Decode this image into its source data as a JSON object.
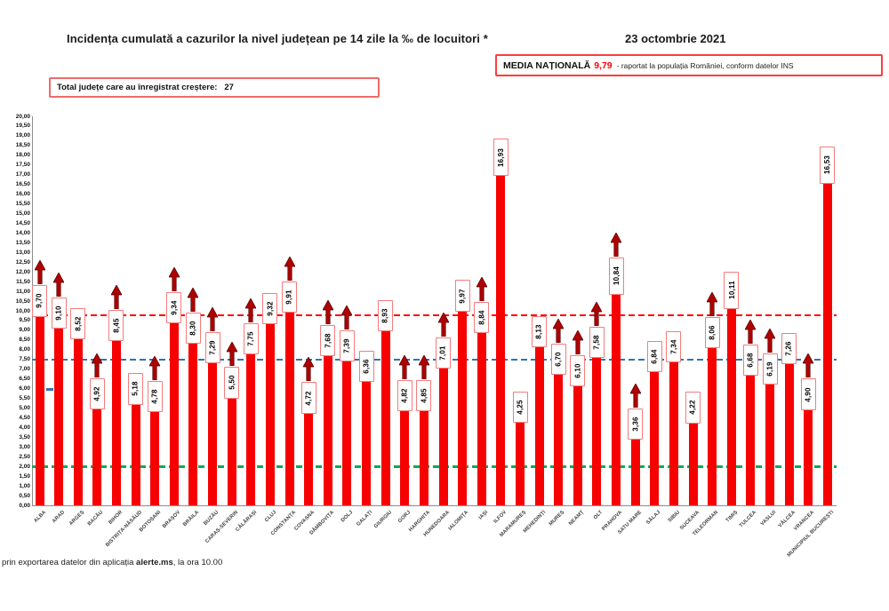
{
  "title": "Incidența cumulată a cazurilor la nivel județean pe 14 zile la ‰ de locuitori *",
  "date": "23 octombrie 2021",
  "national_average_box": {
    "label": "MEDIA NAȚIONALĂ",
    "value": "9,79",
    "suffix": "-  raportat la populația României, conform datelor INS"
  },
  "growth_box": {
    "label": "Total județe care au înregistrat creștere:",
    "value": "27"
  },
  "footer": {
    "prefix": "prin exportarea datelor din aplicația ",
    "bold": "alerte.ms",
    "suffix": ", la ora 10.00"
  },
  "chart_data": {
    "type": "bar",
    "title": "Incidența cumulată a cazurilor la nivel județean pe 14 zile la ‰ de locuitori *",
    "xlabel": "",
    "ylabel": "",
    "ylim": [
      0,
      20
    ],
    "ytick_step": 0.5,
    "grid": false,
    "bar_color": "#f70000",
    "label_box_border_color": "#f47c7c",
    "arrow_color": "#b00000",
    "categories": [
      "ALBA",
      "ARAD",
      "ARGEȘ",
      "BACĂU",
      "BIHOR",
      "BISTRIȚA-NĂSĂUD",
      "BOTOȘANI",
      "BRAȘOV",
      "BRĂILA",
      "BUZĂU",
      "CARAȘ-SEVERIN",
      "CĂLĂRAȘI",
      "CLUJ",
      "CONSTANȚA",
      "COVASNA",
      "DÂMBOVIȚA",
      "DOLJ",
      "GALAȚI",
      "GIURGIU",
      "GORJ",
      "HARGHITA",
      "HUNEDOARA",
      "IALOMIȚA",
      "IAȘI",
      "ILFOV",
      "MARAMUREȘ",
      "MEHEDINȚI",
      "MUREȘ",
      "NEAMȚ",
      "OLT",
      "PRAHOVA",
      "SATU MARE",
      "SĂLAJ",
      "SIBIU",
      "SUCEAVA",
      "TELEORMAN",
      "TIMIȘ",
      "TULCEA",
      "VASLUI",
      "VÂLCEA",
      "VRANCEA",
      "MUNICIPIUL BUCUREȘTI"
    ],
    "values": [
      9.7,
      9.1,
      8.52,
      4.92,
      8.45,
      5.18,
      4.78,
      9.34,
      8.3,
      7.29,
      5.5,
      7.75,
      9.32,
      9.91,
      4.72,
      7.68,
      7.39,
      6.36,
      8.93,
      4.82,
      4.85,
      7.01,
      9.97,
      8.84,
      16.93,
      4.25,
      8.13,
      6.7,
      6.1,
      7.58,
      10.84,
      3.36,
      6.84,
      7.34,
      4.22,
      8.06,
      10.11,
      6.68,
      6.19,
      7.26,
      4.9,
      16.53
    ],
    "increase": [
      true,
      true,
      false,
      true,
      true,
      false,
      true,
      true,
      true,
      true,
      true,
      true,
      false,
      true,
      true,
      true,
      true,
      false,
      false,
      true,
      true,
      true,
      false,
      true,
      false,
      false,
      false,
      true,
      true,
      true,
      true,
      true,
      false,
      false,
      false,
      true,
      false,
      true,
      true,
      false,
      true,
      false
    ],
    "reference_lines": [
      {
        "name": "national-average-line",
        "value": 9.79,
        "color": "#ff0000",
        "style": "dashed"
      },
      {
        "name": "reference-line-blue",
        "value": 7.5,
        "color": "#2e75b6",
        "style": "dashed"
      },
      {
        "name": "reference-line-green",
        "value": 2.0,
        "color": "#00b050",
        "style": "dashed"
      }
    ],
    "left_axis_mark": {
      "name": "blue-axis-mark",
      "value": 6.0,
      "color": "#2e75b6"
    },
    "legend": "none"
  }
}
